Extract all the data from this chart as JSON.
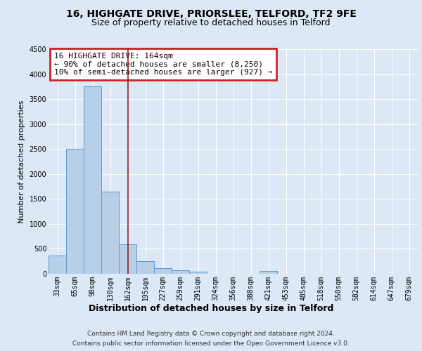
{
  "title1": "16, HIGHGATE DRIVE, PRIORSLEE, TELFORD, TF2 9FE",
  "title2": "Size of property relative to detached houses in Telford",
  "xlabel": "Distribution of detached houses by size in Telford",
  "ylabel": "Number of detached properties",
  "footer1": "Contains HM Land Registry data © Crown copyright and database right 2024.",
  "footer2": "Contains public sector information licensed under the Open Government Licence v3.0.",
  "categories": [
    "33sqm",
    "65sqm",
    "98sqm",
    "130sqm",
    "162sqm",
    "195sqm",
    "227sqm",
    "259sqm",
    "291sqm",
    "324sqm",
    "356sqm",
    "388sqm",
    "421sqm",
    "453sqm",
    "485sqm",
    "518sqm",
    "550sqm",
    "582sqm",
    "614sqm",
    "647sqm",
    "679sqm"
  ],
  "values": [
    370,
    2500,
    3750,
    1650,
    590,
    250,
    110,
    65,
    40,
    0,
    0,
    0,
    50,
    0,
    0,
    0,
    0,
    0,
    0,
    0,
    0
  ],
  "bar_color": "#b8cfe8",
  "bar_edge_color": "#5b9bd5",
  "annotation_title": "16 HIGHGATE DRIVE: 164sqm",
  "annotation_line1": "← 90% of detached houses are smaller (8,250)",
  "annotation_line2": "10% of semi-detached houses are larger (927) →",
  "annotation_box_color": "#ffffff",
  "annotation_border_color": "#cc2222",
  "vline_x": 4,
  "vline_color": "#8b2222",
  "ylim": [
    0,
    4500
  ],
  "yticks": [
    0,
    500,
    1000,
    1500,
    2000,
    2500,
    3000,
    3500,
    4000,
    4500
  ],
  "bg_color": "#dce8f5",
  "plot_bg_color": "#dce8f5",
  "grid_color": "#ffffff",
  "title1_fontsize": 10,
  "title2_fontsize": 9,
  "xlabel_fontsize": 9,
  "ylabel_fontsize": 8,
  "tick_fontsize": 7,
  "annotation_fontsize": 8,
  "footer_fontsize": 6.5
}
